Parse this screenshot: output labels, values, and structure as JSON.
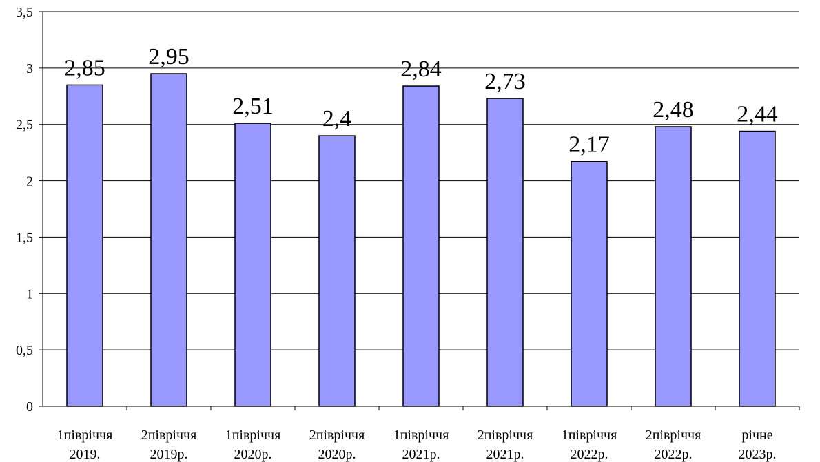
{
  "chart_data": {
    "type": "bar",
    "categories": [
      [
        "1півріччя",
        "2019."
      ],
      [
        "2півріччя",
        "2019р."
      ],
      [
        "1півріччя",
        "2020р."
      ],
      [
        "2півріччя",
        "2020р."
      ],
      [
        "1півріччя",
        "2021р."
      ],
      [
        "2півріччя",
        "2021р."
      ],
      [
        "1півріччя",
        "2022р."
      ],
      [
        "2півріччя",
        "2022р."
      ],
      [
        "річне",
        "2023р."
      ]
    ],
    "values": [
      2.85,
      2.95,
      2.51,
      2.4,
      2.84,
      2.73,
      2.17,
      2.48,
      2.44
    ],
    "data_labels": [
      "2,85",
      "2,95",
      "2,51",
      "2,4",
      "2,84",
      "2,73",
      "2,17",
      "2,48",
      "2,44"
    ],
    "y_ticks": [
      0,
      0.5,
      1,
      1.5,
      2,
      2.5,
      3,
      3.5
    ],
    "y_tick_labels": [
      "0",
      "0,5",
      "1",
      "1,5",
      "2",
      "2,5",
      "3",
      "3,5"
    ],
    "ylim": [
      0,
      3.5
    ],
    "grid": true,
    "legend": "none",
    "colors": {
      "bar_fill": "#9999ff",
      "bar_stroke": "#000000",
      "grid": "#000000"
    }
  }
}
